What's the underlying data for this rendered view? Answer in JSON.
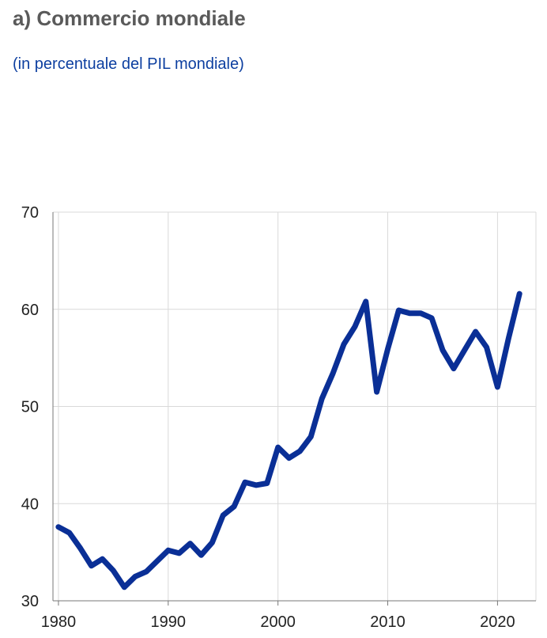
{
  "header": {
    "title": "a) Commercio mondiale",
    "subtitle": "(in percentuale del PIL mondiale)"
  },
  "chart_data": {
    "type": "line",
    "title": "a) Commercio mondiale",
    "subtitle": "(in percentuale del PIL mondiale)",
    "xlabel": "",
    "ylabel": "",
    "xlim": [
      1979.5,
      2023.5
    ],
    "ylim": [
      30,
      70
    ],
    "x_ticks": [
      1980,
      1990,
      2000,
      2010,
      2020
    ],
    "y_ticks": [
      30,
      40,
      50,
      60,
      70
    ],
    "grid": true,
    "legend": "none",
    "series": [
      {
        "color": "#0a2f96",
        "x": [
          1980,
          1981,
          1982,
          1983,
          1984,
          1985,
          1986,
          1987,
          1988,
          1989,
          1990,
          1991,
          1992,
          1993,
          1994,
          1995,
          1996,
          1997,
          1998,
          1999,
          2000,
          2001,
          2002,
          2003,
          2004,
          2005,
          2006,
          2007,
          2008,
          2009,
          2010,
          2011,
          2012,
          2013,
          2014,
          2015,
          2016,
          2017,
          2018,
          2019,
          2020,
          2021,
          2022
        ],
        "values": [
          37.6,
          37.0,
          35.4,
          33.6,
          34.3,
          33.1,
          31.4,
          32.5,
          33.0,
          34.1,
          35.2,
          34.9,
          35.9,
          34.7,
          36.0,
          38.8,
          39.7,
          42.2,
          41.9,
          42.1,
          45.8,
          44.7,
          45.4,
          46.9,
          50.8,
          53.4,
          56.4,
          58.2,
          60.8,
          51.5,
          55.9,
          59.9,
          59.6,
          59.6,
          59.1,
          55.8,
          53.9,
          55.8,
          57.7,
          56.1,
          52.0,
          57.0,
          61.6
        ]
      }
    ]
  }
}
